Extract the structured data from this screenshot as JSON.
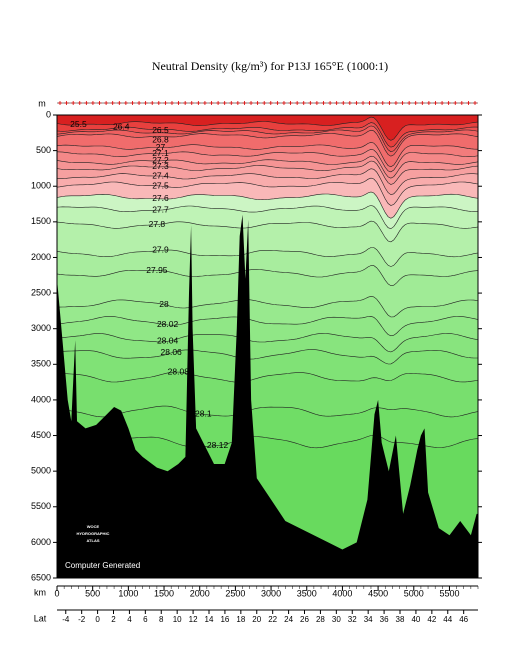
{
  "chart_data": {
    "type": "contour",
    "title": "Neutral Density (kg/m³) for P13J 165°E (1000:1)",
    "y_label": "m",
    "x_label": "km",
    "x2_label": "Lat",
    "xlim": [
      0,
      5900
    ],
    "xticks": [
      0,
      500,
      1000,
      1500,
      2000,
      2500,
      3000,
      3500,
      4000,
      4500,
      5000,
      5500
    ],
    "ylim": [
      6500,
      0
    ],
    "yticks": [
      0,
      500,
      1000,
      1500,
      2000,
      2500,
      3000,
      3500,
      4000,
      4500,
      5000,
      5500,
      6000,
      6500
    ],
    "lat_lim": [
      -5.1,
      47.8
    ],
    "lat_ticks": [
      -4,
      -2,
      0,
      2,
      4,
      6,
      8,
      10,
      12,
      14,
      16,
      18,
      20,
      22,
      24,
      26,
      28,
      30,
      32,
      34,
      36,
      38,
      40,
      42,
      44,
      46
    ],
    "surface_color": "#d82020",
    "levels": [
      {
        "value": 25.5,
        "depth": 120,
        "fill": "#e8403e"
      },
      {
        "value": 26.4,
        "depth": 200,
        "fill": "#ec5252"
      },
      {
        "value": 26.5,
        "depth": 240,
        "fill": "#ee6060"
      },
      {
        "value": 26.8,
        "depth": 290,
        "fill": "#f06c6c"
      },
      {
        "value": 27,
        "depth": 450,
        "fill": "#f27c7c"
      },
      {
        "value": 27.1,
        "depth": 550,
        "fill": "#f48888"
      },
      {
        "value": 27.2,
        "depth": 660,
        "fill": "#f59494"
      },
      {
        "value": 27.3,
        "depth": 745,
        "fill": "#f6a0a0"
      },
      {
        "value": 27.4,
        "depth": 860,
        "fill": "#f8acac"
      },
      {
        "value": 27.5,
        "depth": 980,
        "fill": "#f9b8b8"
      },
      {
        "value": 27.6,
        "depth": 1150,
        "fill": "#ccf5c4"
      },
      {
        "value": 27.7,
        "depth": 1320,
        "fill": "#bff3b6"
      },
      {
        "value": 27.8,
        "depth": 1545,
        "fill": "#b4f0aa"
      },
      {
        "value": 27.9,
        "depth": 1940,
        "fill": "#a8ed9e"
      },
      {
        "value": 27.95,
        "depth": 2220,
        "fill": "#a0eb96"
      },
      {
        "value": 28,
        "depth": 2650,
        "fill": "#98e98e"
      },
      {
        "value": 28.02,
        "depth": 2890,
        "fill": "#90e786"
      },
      {
        "value": 28.04,
        "depth": 3130,
        "fill": "#88e47e"
      },
      {
        "value": 28.06,
        "depth": 3360,
        "fill": "#80e276"
      },
      {
        "value": 28.08,
        "depth": 3680,
        "fill": "#78df6e"
      },
      {
        "value": 28.1,
        "depth": 4160,
        "fill": "#70dd66"
      },
      {
        "value": 28.12,
        "depth": 4590,
        "fill": "#68da5e"
      }
    ],
    "bottom": {
      "color": "#000000",
      "km": [
        0,
        80,
        150,
        200,
        255,
        280,
        400,
        550,
        700,
        800,
        900,
        1000,
        1100,
        1200,
        1400,
        1550,
        1700,
        1800,
        1850,
        1880,
        1900,
        1950,
        2050,
        2200,
        2350,
        2450,
        2520,
        2560,
        2600,
        2640,
        2680,
        2720,
        2800,
        3000,
        3200,
        3400,
        3600,
        3800,
        4000,
        4200,
        4350,
        4450,
        4500,
        4550,
        4650,
        4750,
        4850,
        4950,
        5050,
        5100,
        5150,
        5200,
        5350,
        5500,
        5650,
        5800,
        5880
      ],
      "depth": [
        2300,
        3200,
        4000,
        4300,
        3160,
        4300,
        4400,
        4350,
        4200,
        4100,
        4150,
        4400,
        4700,
        4800,
        4950,
        5000,
        4900,
        4800,
        2500,
        1545,
        3000,
        4400,
        4600,
        4900,
        4900,
        4600,
        3000,
        1700,
        1400,
        2300,
        1470,
        4000,
        5100,
        5400,
        5700,
        5800,
        5900,
        6000,
        6100,
        6000,
        5400,
        4200,
        4000,
        4600,
        5000,
        4500,
        5600,
        5200,
        4700,
        4500,
        4400,
        5300,
        5800,
        5900,
        5700,
        5900,
        5600
      ]
    },
    "logo": [
      "WOCE",
      "HYDROGRAPHIC",
      "ATLAS"
    ],
    "note": "Computer Generated"
  }
}
